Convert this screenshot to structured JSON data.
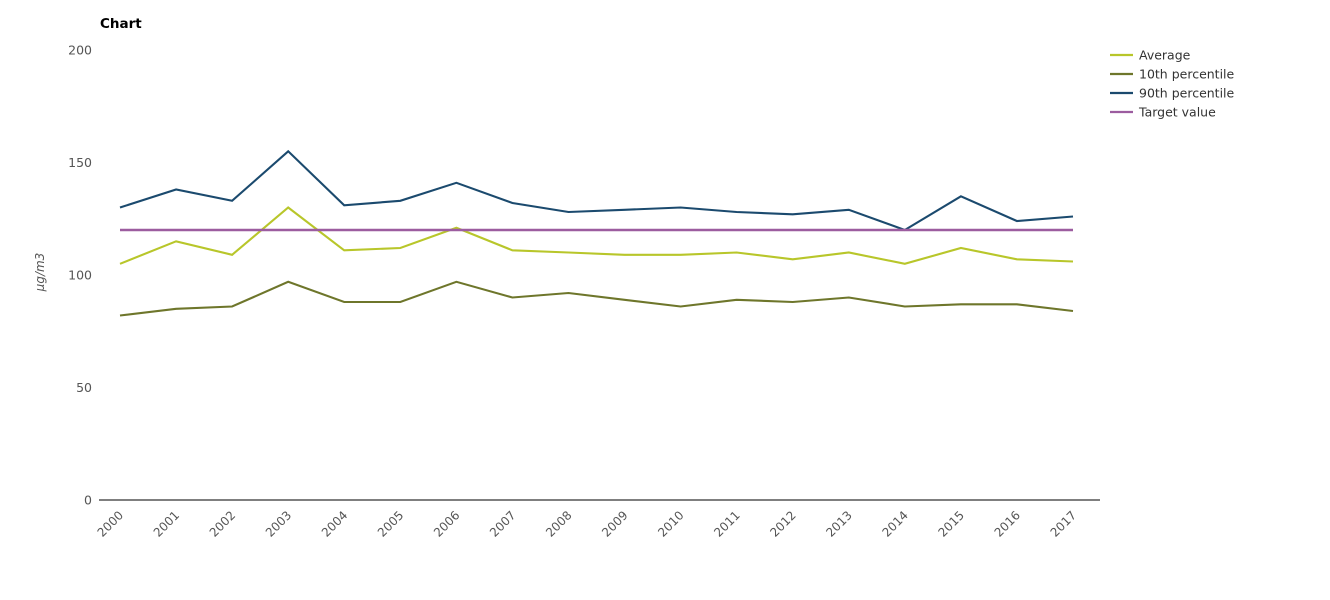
{
  "title": "Chart",
  "chart_data": {
    "type": "line",
    "x": [
      2000,
      2001,
      2002,
      2003,
      2004,
      2005,
      2006,
      2007,
      2008,
      2009,
      2010,
      2011,
      2012,
      2013,
      2014,
      2015,
      2016,
      2017
    ],
    "xlabel": "",
    "ylabel": "µg/m3",
    "ylim": [
      0,
      200
    ],
    "yticks": [
      0,
      50,
      100,
      150,
      200
    ],
    "grid": false,
    "legend_position": "top-right",
    "series": [
      {
        "name": "Average",
        "color": "#b8c62a",
        "values": [
          105,
          115,
          109,
          130,
          111,
          112,
          121,
          111,
          110,
          109,
          109,
          110,
          107,
          110,
          105,
          112,
          107,
          106
        ]
      },
      {
        "name": "10th percentile",
        "color": "#6e762b",
        "values": [
          82,
          85,
          86,
          97,
          88,
          88,
          97,
          90,
          92,
          89,
          86,
          89,
          88,
          90,
          86,
          87,
          87,
          84
        ]
      },
      {
        "name": "90th percentile",
        "color": "#1b4a6e",
        "values": [
          130,
          138,
          133,
          155,
          131,
          133,
          141,
          132,
          128,
          129,
          130,
          128,
          127,
          129,
          120,
          135,
          124,
          126
        ]
      },
      {
        "name": "Target value",
        "color": "#9c5c9f",
        "values": [
          120,
          120,
          120,
          120,
          120,
          120,
          120,
          120,
          120,
          120,
          120,
          120,
          120,
          120,
          120,
          120,
          120,
          120
        ]
      }
    ]
  }
}
